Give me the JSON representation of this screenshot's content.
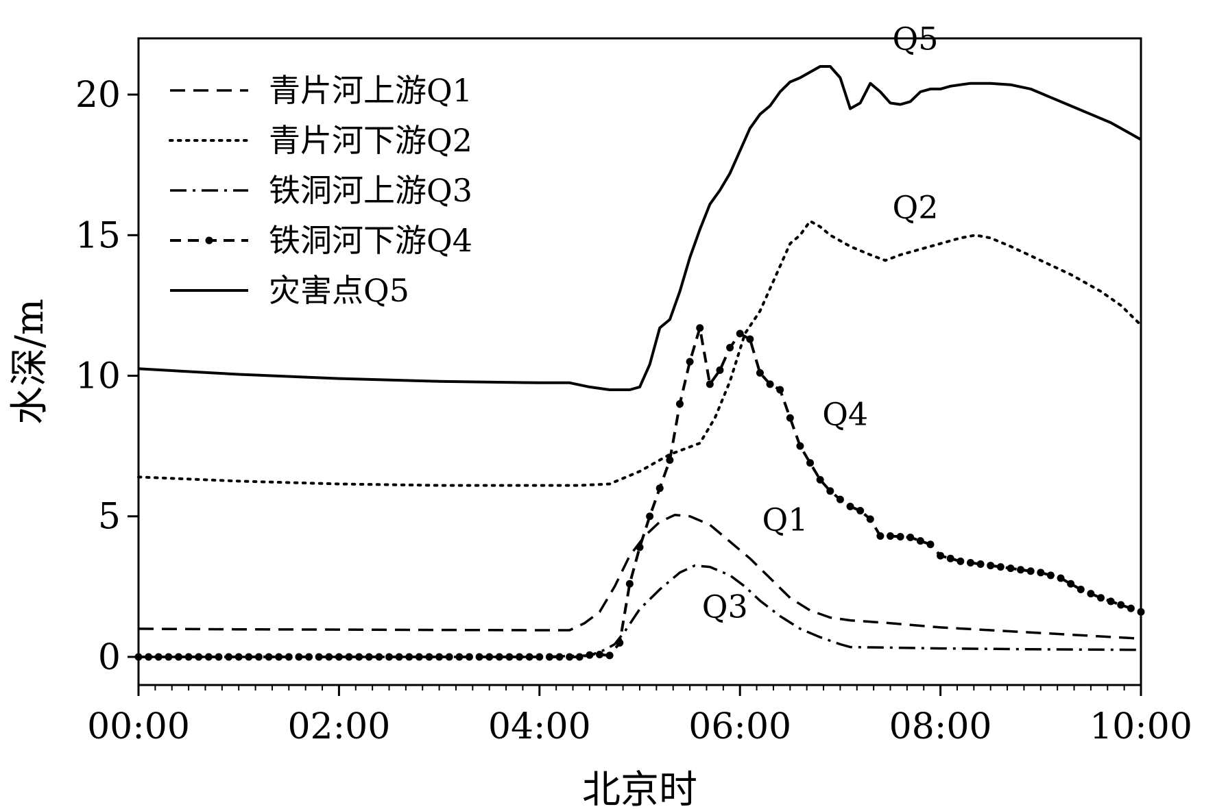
{
  "chart_data": {
    "type": "line",
    "xlabel": "北京时",
    "ylabel": "水深/m",
    "xlim": [
      0,
      10
    ],
    "ylim": [
      -1,
      22
    ],
    "xticks": [
      {
        "value": 0,
        "label": "00:00"
      },
      {
        "value": 2,
        "label": "02:00"
      },
      {
        "value": 4,
        "label": "04:00"
      },
      {
        "value": 6,
        "label": "06:00"
      },
      {
        "value": 8,
        "label": "08:00"
      },
      {
        "value": 10,
        "label": "10:00"
      }
    ],
    "yticks": [
      {
        "value": 0,
        "label": "0"
      },
      {
        "value": 5,
        "label": "5"
      },
      {
        "value": 10,
        "label": "10"
      },
      {
        "value": 15,
        "label": "15"
      },
      {
        "value": 20,
        "label": "20"
      }
    ],
    "grid": false,
    "legend_position": "top-left",
    "series": [
      {
        "name": "青片河上游Q1",
        "style": "dashed",
        "color": "#000000",
        "points": [
          [
            0,
            1.0
          ],
          [
            1,
            0.98
          ],
          [
            2,
            0.97
          ],
          [
            3,
            0.96
          ],
          [
            4,
            0.95
          ],
          [
            4.3,
            0.95
          ],
          [
            4.45,
            1.2
          ],
          [
            4.6,
            1.6
          ],
          [
            4.75,
            2.5
          ],
          [
            4.9,
            3.6
          ],
          [
            5.05,
            4.3
          ],
          [
            5.2,
            4.8
          ],
          [
            5.35,
            5.05
          ],
          [
            5.5,
            5.0
          ],
          [
            5.7,
            4.7
          ],
          [
            5.9,
            4.1
          ],
          [
            6.1,
            3.5
          ],
          [
            6.3,
            2.8
          ],
          [
            6.5,
            2.1
          ],
          [
            6.7,
            1.65
          ],
          [
            6.9,
            1.4
          ],
          [
            7.1,
            1.3
          ],
          [
            7.5,
            1.2
          ],
          [
            8,
            1.05
          ],
          [
            8.5,
            0.95
          ],
          [
            9,
            0.85
          ],
          [
            9.5,
            0.75
          ],
          [
            10,
            0.65
          ]
        ]
      },
      {
        "name": "青片河下游Q2",
        "style": "dotted",
        "color": "#000000",
        "points": [
          [
            0,
            6.4
          ],
          [
            1,
            6.25
          ],
          [
            2,
            6.15
          ],
          [
            3,
            6.1
          ],
          [
            4,
            6.1
          ],
          [
            4.4,
            6.1
          ],
          [
            4.7,
            6.15
          ],
          [
            5.0,
            6.6
          ],
          [
            5.3,
            7.2
          ],
          [
            5.6,
            7.6
          ],
          [
            5.75,
            8.5
          ],
          [
            5.9,
            9.8
          ],
          [
            6.05,
            11.5
          ],
          [
            6.2,
            12.3
          ],
          [
            6.35,
            13.5
          ],
          [
            6.5,
            14.7
          ],
          [
            6.6,
            15.0
          ],
          [
            6.7,
            15.5
          ],
          [
            6.8,
            15.3
          ],
          [
            6.9,
            15.0
          ],
          [
            7.1,
            14.6
          ],
          [
            7.3,
            14.3
          ],
          [
            7.45,
            14.1
          ],
          [
            7.6,
            14.3
          ],
          [
            7.8,
            14.5
          ],
          [
            8.0,
            14.7
          ],
          [
            8.2,
            14.9
          ],
          [
            8.35,
            15.0
          ],
          [
            8.5,
            14.9
          ],
          [
            8.7,
            14.6
          ],
          [
            9.0,
            14.1
          ],
          [
            9.3,
            13.6
          ],
          [
            9.6,
            13.0
          ],
          [
            9.8,
            12.5
          ],
          [
            10,
            11.8
          ]
        ]
      },
      {
        "name": "铁洞河上游Q3",
        "style": "dashdot",
        "color": "#000000",
        "points": [
          [
            0,
            0
          ],
          [
            1,
            0
          ],
          [
            2,
            0
          ],
          [
            3,
            0
          ],
          [
            4,
            0
          ],
          [
            4.5,
            0.05
          ],
          [
            4.65,
            0.25
          ],
          [
            4.75,
            0.45
          ],
          [
            4.85,
            0.9
          ],
          [
            5.0,
            1.7
          ],
          [
            5.2,
            2.4
          ],
          [
            5.4,
            3.0
          ],
          [
            5.55,
            3.25
          ],
          [
            5.7,
            3.2
          ],
          [
            5.9,
            2.9
          ],
          [
            6.05,
            2.5
          ],
          [
            6.2,
            2.0
          ],
          [
            6.4,
            1.45
          ],
          [
            6.6,
            1.0
          ],
          [
            6.8,
            0.7
          ],
          [
            7.0,
            0.45
          ],
          [
            7.1,
            0.35
          ],
          [
            7.5,
            0.33
          ],
          [
            8,
            0.3
          ],
          [
            9,
            0.27
          ],
          [
            10,
            0.25
          ]
        ]
      },
      {
        "name": "铁洞河下游Q4",
        "style": "dashed-markers",
        "color": "#000000",
        "points": [
          [
            0,
            0
          ],
          [
            0.5,
            0
          ],
          [
            1,
            0
          ],
          [
            1.5,
            0
          ],
          [
            2,
            0
          ],
          [
            2.5,
            0
          ],
          [
            3,
            0
          ],
          [
            3.5,
            0
          ],
          [
            4,
            0
          ],
          [
            4.4,
            0
          ],
          [
            4.55,
            0.1
          ],
          [
            4.7,
            0.05
          ],
          [
            4.8,
            0.5
          ],
          [
            4.9,
            2.6
          ],
          [
            5.0,
            3.9
          ],
          [
            5.1,
            5.0
          ],
          [
            5.2,
            6.0
          ],
          [
            5.3,
            7.0
          ],
          [
            5.4,
            9.0
          ],
          [
            5.5,
            10.5
          ],
          [
            5.6,
            11.7
          ],
          [
            5.7,
            9.7
          ],
          [
            5.8,
            10.2
          ],
          [
            5.9,
            11.0
          ],
          [
            6.0,
            11.5
          ],
          [
            6.1,
            11.3
          ],
          [
            6.2,
            10.1
          ],
          [
            6.3,
            9.7
          ],
          [
            6.4,
            9.5
          ],
          [
            6.5,
            8.5
          ],
          [
            6.6,
            7.5
          ],
          [
            6.7,
            6.9
          ],
          [
            6.8,
            6.3
          ],
          [
            6.9,
            5.9
          ],
          [
            7.0,
            5.6
          ],
          [
            7.1,
            5.35
          ],
          [
            7.2,
            5.2
          ],
          [
            7.3,
            4.9
          ],
          [
            7.4,
            4.3
          ],
          [
            7.5,
            4.3
          ],
          [
            7.7,
            4.25
          ],
          [
            7.9,
            4.0
          ],
          [
            8.0,
            3.6
          ],
          [
            8.2,
            3.4
          ],
          [
            8.4,
            3.3
          ],
          [
            8.6,
            3.2
          ],
          [
            8.8,
            3.1
          ],
          [
            9.0,
            3.0
          ],
          [
            9.2,
            2.8
          ],
          [
            9.4,
            2.4
          ],
          [
            9.6,
            2.1
          ],
          [
            9.8,
            1.85
          ],
          [
            10,
            1.6
          ]
        ]
      },
      {
        "name": "灾害点Q5",
        "style": "solid",
        "color": "#000000",
        "points": [
          [
            0,
            10.25
          ],
          [
            1,
            10.05
          ],
          [
            2,
            9.9
          ],
          [
            3,
            9.8
          ],
          [
            4,
            9.75
          ],
          [
            4.3,
            9.75
          ],
          [
            4.5,
            9.6
          ],
          [
            4.7,
            9.5
          ],
          [
            4.9,
            9.5
          ],
          [
            5.0,
            9.6
          ],
          [
            5.1,
            10.4
          ],
          [
            5.2,
            11.7
          ],
          [
            5.3,
            12.0
          ],
          [
            5.4,
            13.0
          ],
          [
            5.5,
            14.2
          ],
          [
            5.6,
            15.2
          ],
          [
            5.7,
            16.1
          ],
          [
            5.8,
            16.6
          ],
          [
            5.9,
            17.2
          ],
          [
            6.0,
            18.0
          ],
          [
            6.1,
            18.8
          ],
          [
            6.2,
            19.3
          ],
          [
            6.3,
            19.6
          ],
          [
            6.4,
            20.1
          ],
          [
            6.5,
            20.45
          ],
          [
            6.6,
            20.6
          ],
          [
            6.7,
            20.8
          ],
          [
            6.8,
            21.0
          ],
          [
            6.9,
            21.0
          ],
          [
            7.0,
            20.6
          ],
          [
            7.1,
            19.5
          ],
          [
            7.2,
            19.7
          ],
          [
            7.3,
            20.4
          ],
          [
            7.4,
            20.1
          ],
          [
            7.5,
            19.7
          ],
          [
            7.6,
            19.65
          ],
          [
            7.7,
            19.75
          ],
          [
            7.8,
            20.1
          ],
          [
            7.9,
            20.2
          ],
          [
            8.0,
            20.2
          ],
          [
            8.1,
            20.3
          ],
          [
            8.2,
            20.35
          ],
          [
            8.3,
            20.4
          ],
          [
            8.5,
            20.4
          ],
          [
            8.7,
            20.35
          ],
          [
            8.9,
            20.2
          ],
          [
            9.1,
            19.9
          ],
          [
            9.3,
            19.6
          ],
          [
            9.5,
            19.3
          ],
          [
            9.7,
            19.0
          ],
          [
            9.9,
            18.6
          ],
          [
            10,
            18.4
          ]
        ]
      }
    ],
    "annotations": [
      {
        "text": "Q5",
        "x": 7.75,
        "y": 21.6
      },
      {
        "text": "Q2",
        "x": 7.75,
        "y": 15.6
      },
      {
        "text": "Q4",
        "x": 7.05,
        "y": 8.25
      },
      {
        "text": "Q1",
        "x": 6.45,
        "y": 4.5
      },
      {
        "text": "Q3",
        "x": 5.85,
        "y": 1.4
      }
    ]
  }
}
